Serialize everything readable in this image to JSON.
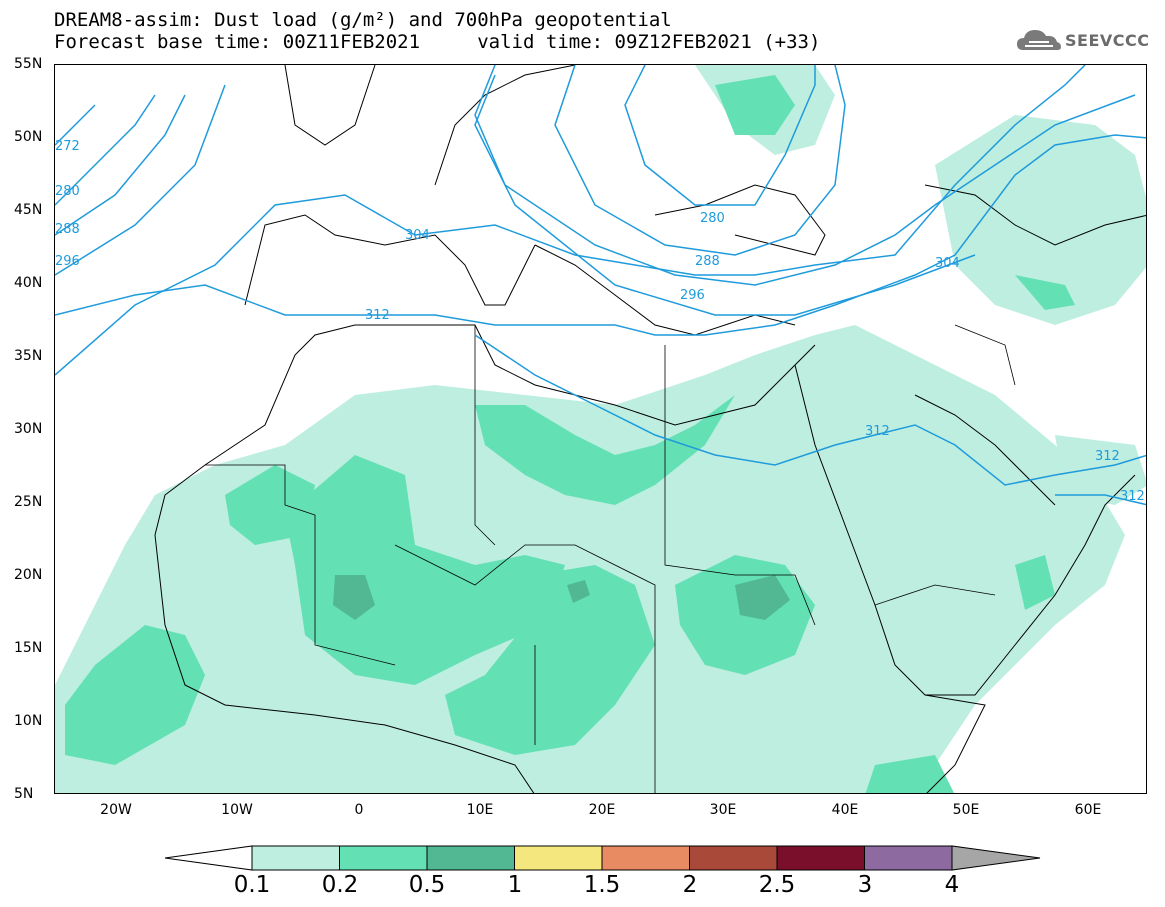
{
  "title": {
    "line1": "DREAM8-assim: Dust load (g/m²) and 700hPa geopotential",
    "line2": "Forecast base time: 00Z11FEB2021     valid time: 09Z12FEB2021 (+33)"
  },
  "logo": {
    "text": "SEEVCCC",
    "icon": "cloud-logo-icon"
  },
  "map": {
    "lon_range": [
      -25,
      65
    ],
    "lat_range": [
      5,
      55
    ],
    "lat_labels": [
      "55N",
      "50N",
      "45N",
      "40N",
      "35N",
      "30N",
      "25N",
      "20N",
      "15N",
      "10N",
      "5N"
    ],
    "lon_labels": [
      "20W",
      "10W",
      "0",
      "10E",
      "20E",
      "30E",
      "40E",
      "50E",
      "60E"
    ],
    "contour_color": "#1f9bdc",
    "contour_labels": [
      "272",
      "280",
      "288",
      "296",
      "304",
      "312",
      "312",
      "280",
      "288",
      "296",
      "304",
      "312",
      "312",
      "312"
    ]
  },
  "colorbar": {
    "labels": [
      "0.1",
      "0.2",
      "0.5",
      "1",
      "1.5",
      "2",
      "2.5",
      "3",
      "4"
    ],
    "colors": [
      "#bdeee0",
      "#63e0b4",
      "#52b893",
      "#f3e77d",
      "#e88b62",
      "#a9493a",
      "#7a0f2c",
      "#8d6aa0"
    ],
    "low_extend_color": "#ffffff",
    "high_extend_color": "#a6a6a6"
  }
}
